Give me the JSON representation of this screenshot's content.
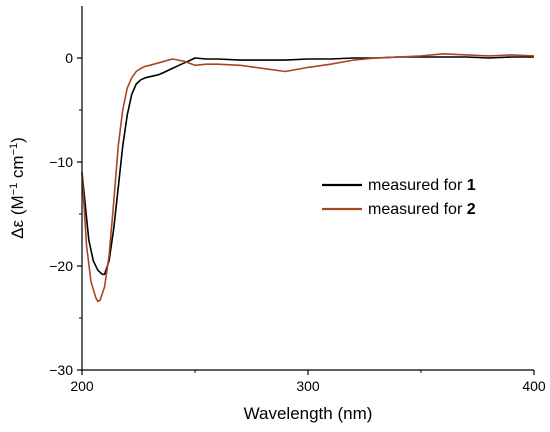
{
  "chart_data": {
    "type": "line",
    "xlabel": "Wavelength (nm)",
    "ylabel_parts": [
      "Δε (M",
      "−1",
      " cm",
      "−1",
      ")"
    ],
    "xlim": [
      200,
      400
    ],
    "ylim": [
      -30,
      5
    ],
    "xticks": [
      200,
      300,
      400
    ],
    "yticks": [
      -30,
      -20,
      -10,
      0
    ],
    "xtick_labels": [
      "200",
      "300",
      "400"
    ],
    "ytick_labels": [
      "−30",
      "−20",
      "−10",
      "0"
    ],
    "grid": false,
    "legend_position": "right-middle",
    "series": [
      {
        "legend_prefix": "measured for ",
        "legend_bold": "1",
        "color": "#000000",
        "x": [
          200,
          203,
          205,
          207,
          209,
          210,
          212,
          214,
          216,
          218,
          220,
          222,
          224,
          226,
          228,
          230,
          232,
          234,
          236,
          238,
          240,
          242,
          244,
          246,
          248,
          250,
          255,
          260,
          270,
          280,
          290,
          300,
          310,
          320,
          330,
          340,
          350,
          360,
          370,
          380,
          390,
          400
        ],
        "y": [
          -11,
          -17.5,
          -19.5,
          -20.4,
          -20.8,
          -20.8,
          -19.5,
          -16.5,
          -12.5,
          -8.5,
          -5.5,
          -3.5,
          -2.5,
          -2.1,
          -1.9,
          -1.8,
          -1.7,
          -1.6,
          -1.4,
          -1.2,
          -1.0,
          -0.8,
          -0.6,
          -0.4,
          -0.2,
          0.0,
          -0.1,
          -0.1,
          -0.2,
          -0.2,
          -0.2,
          -0.1,
          -0.1,
          0.0,
          0.0,
          0.1,
          0.1,
          0.1,
          0.1,
          0.0,
          0.1,
          0.1
        ]
      },
      {
        "legend_prefix": "measured for ",
        "legend_bold": "2",
        "color": "#a8461f",
        "x": [
          200,
          202,
          204,
          206,
          207,
          208,
          210,
          212,
          214,
          216,
          218,
          220,
          222,
          224,
          226,
          228,
          230,
          235,
          240,
          245,
          250,
          255,
          260,
          270,
          280,
          290,
          300,
          310,
          320,
          330,
          340,
          350,
          360,
          370,
          380,
          390,
          400
        ],
        "y": [
          -11,
          -18,
          -21.5,
          -23.0,
          -23.4,
          -23.3,
          -22.0,
          -19.0,
          -14.0,
          -8.5,
          -5.0,
          -2.9,
          -1.9,
          -1.3,
          -1.0,
          -0.8,
          -0.7,
          -0.4,
          -0.1,
          -0.3,
          -0.7,
          -0.6,
          -0.6,
          -0.7,
          -1.0,
          -1.3,
          -0.9,
          -0.6,
          -0.2,
          0.0,
          0.1,
          0.2,
          0.4,
          0.3,
          0.2,
          0.3,
          0.2
        ]
      }
    ]
  }
}
